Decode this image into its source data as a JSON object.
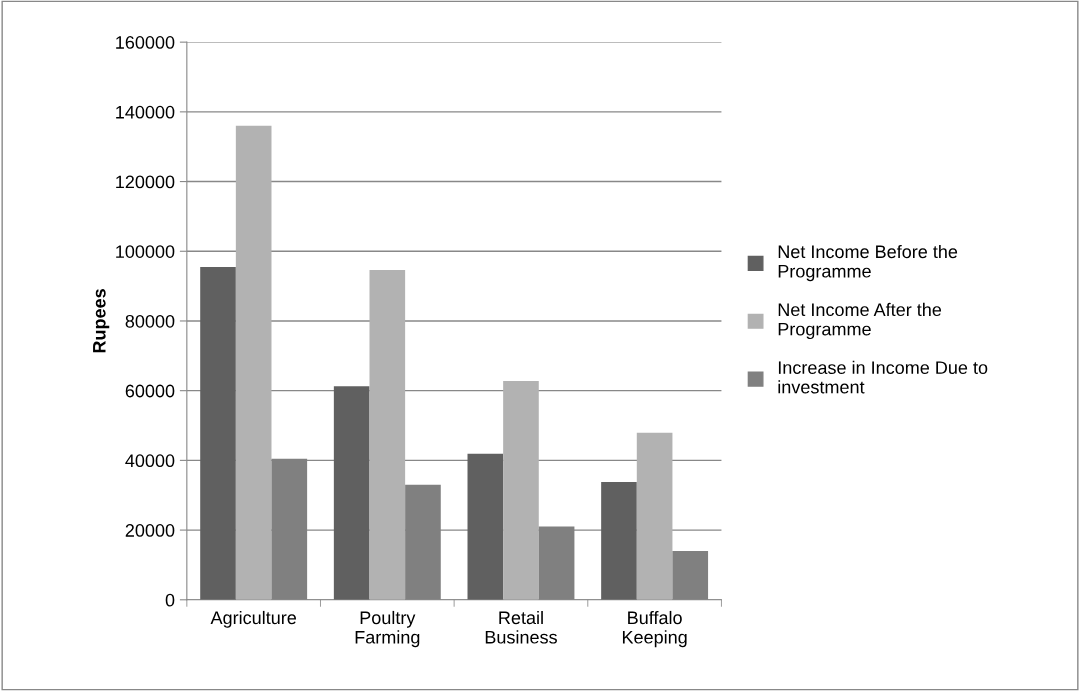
{
  "chart_data": {
    "type": "bar",
    "ylabel": "Rupees",
    "categories": [
      "Agriculture",
      "Poultry\nFarming",
      "Retail\nBusiness",
      "Buffalo\nKeeping"
    ],
    "series": [
      {
        "name": "Net Income Before the\nProgramme",
        "color": "#606060",
        "values": [
          95500,
          61300,
          41900,
          33800
        ]
      },
      {
        "name": "Net Income After the\nProgramme",
        "color": "#b2b2b2",
        "values": [
          136000,
          94600,
          62800,
          47900
        ]
      },
      {
        "name": "Increase in Income Due to\ninvestment",
        "color": "#808080",
        "values": [
          40500,
          33000,
          21000,
          14000
        ]
      }
    ],
    "ylim": [
      0,
      160000
    ],
    "yticks": [
      0,
      20000,
      40000,
      60000,
      80000,
      100000,
      120000,
      140000,
      160000
    ],
    "grid": "y",
    "legend": "right"
  }
}
